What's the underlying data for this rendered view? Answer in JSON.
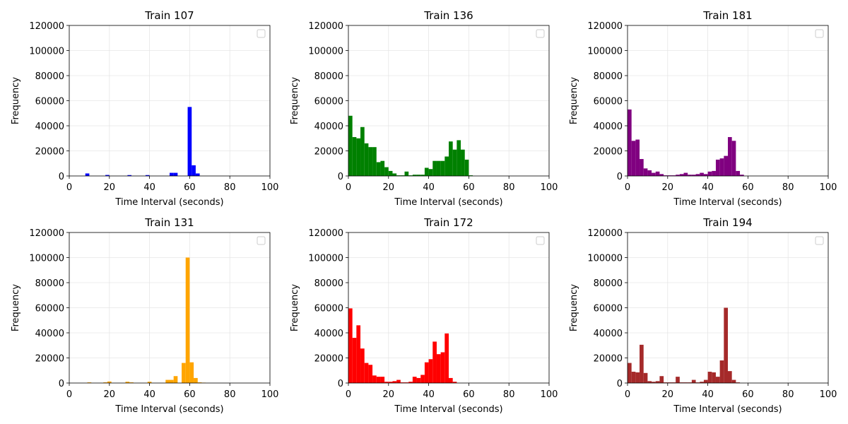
{
  "chart_data": [
    {
      "type": "bar",
      "title": "Train 107",
      "xlabel": "Time Interval (seconds)",
      "ylabel": "Frequency",
      "xlim": [
        0,
        100
      ],
      "ylim": [
        0,
        120000
      ],
      "xticks": [
        0,
        20,
        40,
        60,
        80,
        100
      ],
      "yticks": [
        0,
        20000,
        40000,
        60000,
        80000,
        100000,
        120000
      ],
      "grid": true,
      "legend": "top-right (empty)",
      "color": "#0000ff",
      "bin_width": 2.0,
      "bins": [
        [
          9,
          2000
        ],
        [
          19,
          800
        ],
        [
          30,
          700
        ],
        [
          39,
          700
        ],
        [
          51,
          2500
        ],
        [
          53,
          2500
        ],
        [
          60,
          55000
        ],
        [
          62,
          8500
        ],
        [
          64,
          2000
        ]
      ]
    },
    {
      "type": "bar",
      "title": "Train 136",
      "xlabel": "Time Interval (seconds)",
      "ylabel": "Frequency",
      "xlim": [
        0,
        100
      ],
      "ylim": [
        0,
        120000
      ],
      "xticks": [
        0,
        20,
        40,
        60,
        80,
        100
      ],
      "yticks": [
        0,
        20000,
        40000,
        60000,
        80000,
        100000,
        120000
      ],
      "grid": true,
      "legend": "top-right (empty)",
      "color": "#008000",
      "bin_width": 2.0,
      "bins": [
        [
          1,
          48000
        ],
        [
          3,
          31000
        ],
        [
          5,
          30000
        ],
        [
          7,
          39000
        ],
        [
          9,
          26000
        ],
        [
          11,
          23000
        ],
        [
          13,
          23000
        ],
        [
          15,
          11000
        ],
        [
          17,
          12000
        ],
        [
          19,
          7000
        ],
        [
          21,
          4000
        ],
        [
          23,
          2000
        ],
        [
          25,
          500
        ],
        [
          27,
          500
        ],
        [
          29,
          3500
        ],
        [
          31,
          500
        ],
        [
          33,
          1000
        ],
        [
          35,
          1000
        ],
        [
          37,
          1000
        ],
        [
          39,
          6500
        ],
        [
          41,
          5500
        ],
        [
          43,
          12000
        ],
        [
          45,
          12000
        ],
        [
          47,
          12000
        ],
        [
          49,
          15500
        ],
        [
          51,
          27500
        ],
        [
          53,
          21000
        ],
        [
          55,
          28500
        ],
        [
          57,
          21000
        ],
        [
          59,
          13000
        ],
        [
          61,
          500
        ]
      ]
    },
    {
      "type": "bar",
      "title": "Train 181",
      "xlabel": "Time Interval (seconds)",
      "ylabel": "Frequency",
      "xlim": [
        0,
        100
      ],
      "ylim": [
        0,
        120000
      ],
      "xticks": [
        0,
        20,
        40,
        60,
        80,
        100
      ],
      "yticks": [
        0,
        20000,
        40000,
        60000,
        80000,
        100000,
        120000
      ],
      "grid": true,
      "legend": "top-right (empty)",
      "color": "#800080",
      "bin_width": 2.0,
      "bins": [
        [
          1,
          53000
        ],
        [
          3,
          28000
        ],
        [
          5,
          29000
        ],
        [
          7,
          13500
        ],
        [
          9,
          6000
        ],
        [
          11,
          4500
        ],
        [
          13,
          2500
        ],
        [
          15,
          3500
        ],
        [
          17,
          1500
        ],
        [
          19,
          500
        ],
        [
          21,
          500
        ],
        [
          23,
          500
        ],
        [
          25,
          1000
        ],
        [
          27,
          1500
        ],
        [
          29,
          2500
        ],
        [
          31,
          1000
        ],
        [
          33,
          1000
        ],
        [
          35,
          1500
        ],
        [
          37,
          2500
        ],
        [
          39,
          1500
        ],
        [
          41,
          3500
        ],
        [
          43,
          4000
        ],
        [
          45,
          13000
        ],
        [
          47,
          14000
        ],
        [
          49,
          16000
        ],
        [
          51,
          31000
        ],
        [
          53,
          28000
        ],
        [
          55,
          4000
        ],
        [
          57,
          1000
        ]
      ]
    },
    {
      "type": "bar",
      "title": "Train 131",
      "xlabel": "Time Interval (seconds)",
      "ylabel": "Frequency",
      "xlim": [
        0,
        100
      ],
      "ylim": [
        0,
        120000
      ],
      "xticks": [
        0,
        20,
        40,
        60,
        80,
        100
      ],
      "yticks": [
        0,
        20000,
        40000,
        60000,
        80000,
        100000,
        120000
      ],
      "grid": true,
      "legend": "top-right (empty)",
      "color": "#ffa500",
      "bin_width": 2.0,
      "bins": [
        [
          10,
          500
        ],
        [
          18,
          500
        ],
        [
          20,
          1200
        ],
        [
          29,
          1000
        ],
        [
          31,
          500
        ],
        [
          40,
          1000
        ],
        [
          49,
          2500
        ],
        [
          51,
          2500
        ],
        [
          53,
          5500
        ],
        [
          57,
          16000
        ],
        [
          59,
          100000
        ],
        [
          61,
          16500
        ],
        [
          63,
          4000
        ],
        [
          65,
          500
        ],
        [
          67,
          300
        ]
      ]
    },
    {
      "type": "bar",
      "title": "Train 172",
      "xlabel": "Time Interval (seconds)",
      "ylabel": "Frequency",
      "xlim": [
        0,
        100
      ],
      "ylim": [
        0,
        120000
      ],
      "xticks": [
        0,
        20,
        40,
        60,
        80,
        100
      ],
      "yticks": [
        0,
        20000,
        40000,
        60000,
        80000,
        100000,
        120000
      ],
      "grid": true,
      "legend": "top-right (empty)",
      "color": "#ff0000",
      "bin_width": 2.0,
      "bins": [
        [
          1,
          59500
        ],
        [
          3,
          36000
        ],
        [
          5,
          46000
        ],
        [
          7,
          27500
        ],
        [
          9,
          16000
        ],
        [
          11,
          14500
        ],
        [
          13,
          6000
        ],
        [
          15,
          5000
        ],
        [
          17,
          5000
        ],
        [
          19,
          1000
        ],
        [
          21,
          1000
        ],
        [
          23,
          1500
        ],
        [
          25,
          2500
        ],
        [
          27,
          500
        ],
        [
          29,
          500
        ],
        [
          31,
          1000
        ],
        [
          33,
          5000
        ],
        [
          35,
          4000
        ],
        [
          37,
          6500
        ],
        [
          39,
          16500
        ],
        [
          41,
          19000
        ],
        [
          43,
          33000
        ],
        [
          45,
          23000
        ],
        [
          47,
          24500
        ],
        [
          49,
          39500
        ],
        [
          51,
          4000
        ],
        [
          53,
          1000
        ]
      ]
    },
    {
      "type": "bar",
      "title": "Train 194",
      "xlabel": "Time Interval (seconds)",
      "ylabel": "Frequency",
      "xlim": [
        0,
        100
      ],
      "ylim": [
        0,
        120000
      ],
      "xticks": [
        0,
        20,
        40,
        60,
        80,
        100
      ],
      "yticks": [
        0,
        20000,
        40000,
        60000,
        80000,
        100000,
        120000
      ],
      "grid": true,
      "legend": "top-right (empty)",
      "color": "#a52a2a",
      "bin_width": 2.0,
      "bins": [
        [
          1,
          16000
        ],
        [
          3,
          9000
        ],
        [
          5,
          8500
        ],
        [
          7,
          30500
        ],
        [
          9,
          8000
        ],
        [
          11,
          1500
        ],
        [
          13,
          1000
        ],
        [
          15,
          1500
        ],
        [
          17,
          5500
        ],
        [
          19,
          500
        ],
        [
          21,
          500
        ],
        [
          23,
          500
        ],
        [
          25,
          5000
        ],
        [
          27,
          500
        ],
        [
          29,
          500
        ],
        [
          31,
          500
        ],
        [
          33,
          2500
        ],
        [
          35,
          500
        ],
        [
          37,
          1000
        ],
        [
          39,
          2500
        ],
        [
          41,
          9000
        ],
        [
          43,
          8500
        ],
        [
          45,
          5000
        ],
        [
          47,
          18000
        ],
        [
          49,
          60000
        ],
        [
          51,
          9500
        ],
        [
          53,
          2500
        ],
        [
          55,
          500
        ]
      ]
    }
  ]
}
